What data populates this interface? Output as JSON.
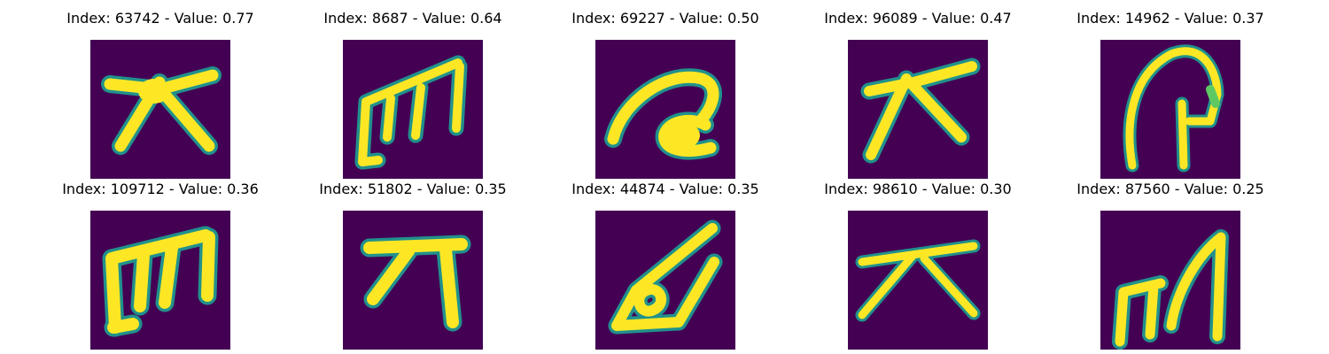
{
  "panels": [
    {
      "title": "Index: 63742 - Value: 0.77",
      "glyph": "star-stroke-glyph"
    },
    {
      "title": "Index: 8687 - Value: 0.64",
      "glyph": "m-shape-glyph"
    },
    {
      "title": "Index: 69227 - Value: 0.50",
      "glyph": "a-loop-glyph"
    },
    {
      "title": "Index: 96089 - Value: 0.47",
      "glyph": "star-stroke-glyph"
    },
    {
      "title": "Index: 14962 - Value: 0.37",
      "glyph": "hook-arch-glyph"
    },
    {
      "title": "Index: 109712 - Value: 0.36",
      "glyph": "m-shape-glyph"
    },
    {
      "title": "Index: 51802 - Value: 0.35",
      "glyph": "bar-hook-glyph"
    },
    {
      "title": "Index: 44874 - Value: 0.35",
      "glyph": "leaf-loop-glyph"
    },
    {
      "title": "Index: 98610 - Value: 0.30",
      "glyph": "star-stroke-glyph"
    },
    {
      "title": "Index: 87560 - Value: 0.25",
      "glyph": "m-shape-glyph"
    }
  ],
  "colors": {
    "background": "#440154",
    "stroke_core": "#fde725",
    "stroke_edge": "#21918c",
    "stroke_mid": "#5ec962"
  }
}
